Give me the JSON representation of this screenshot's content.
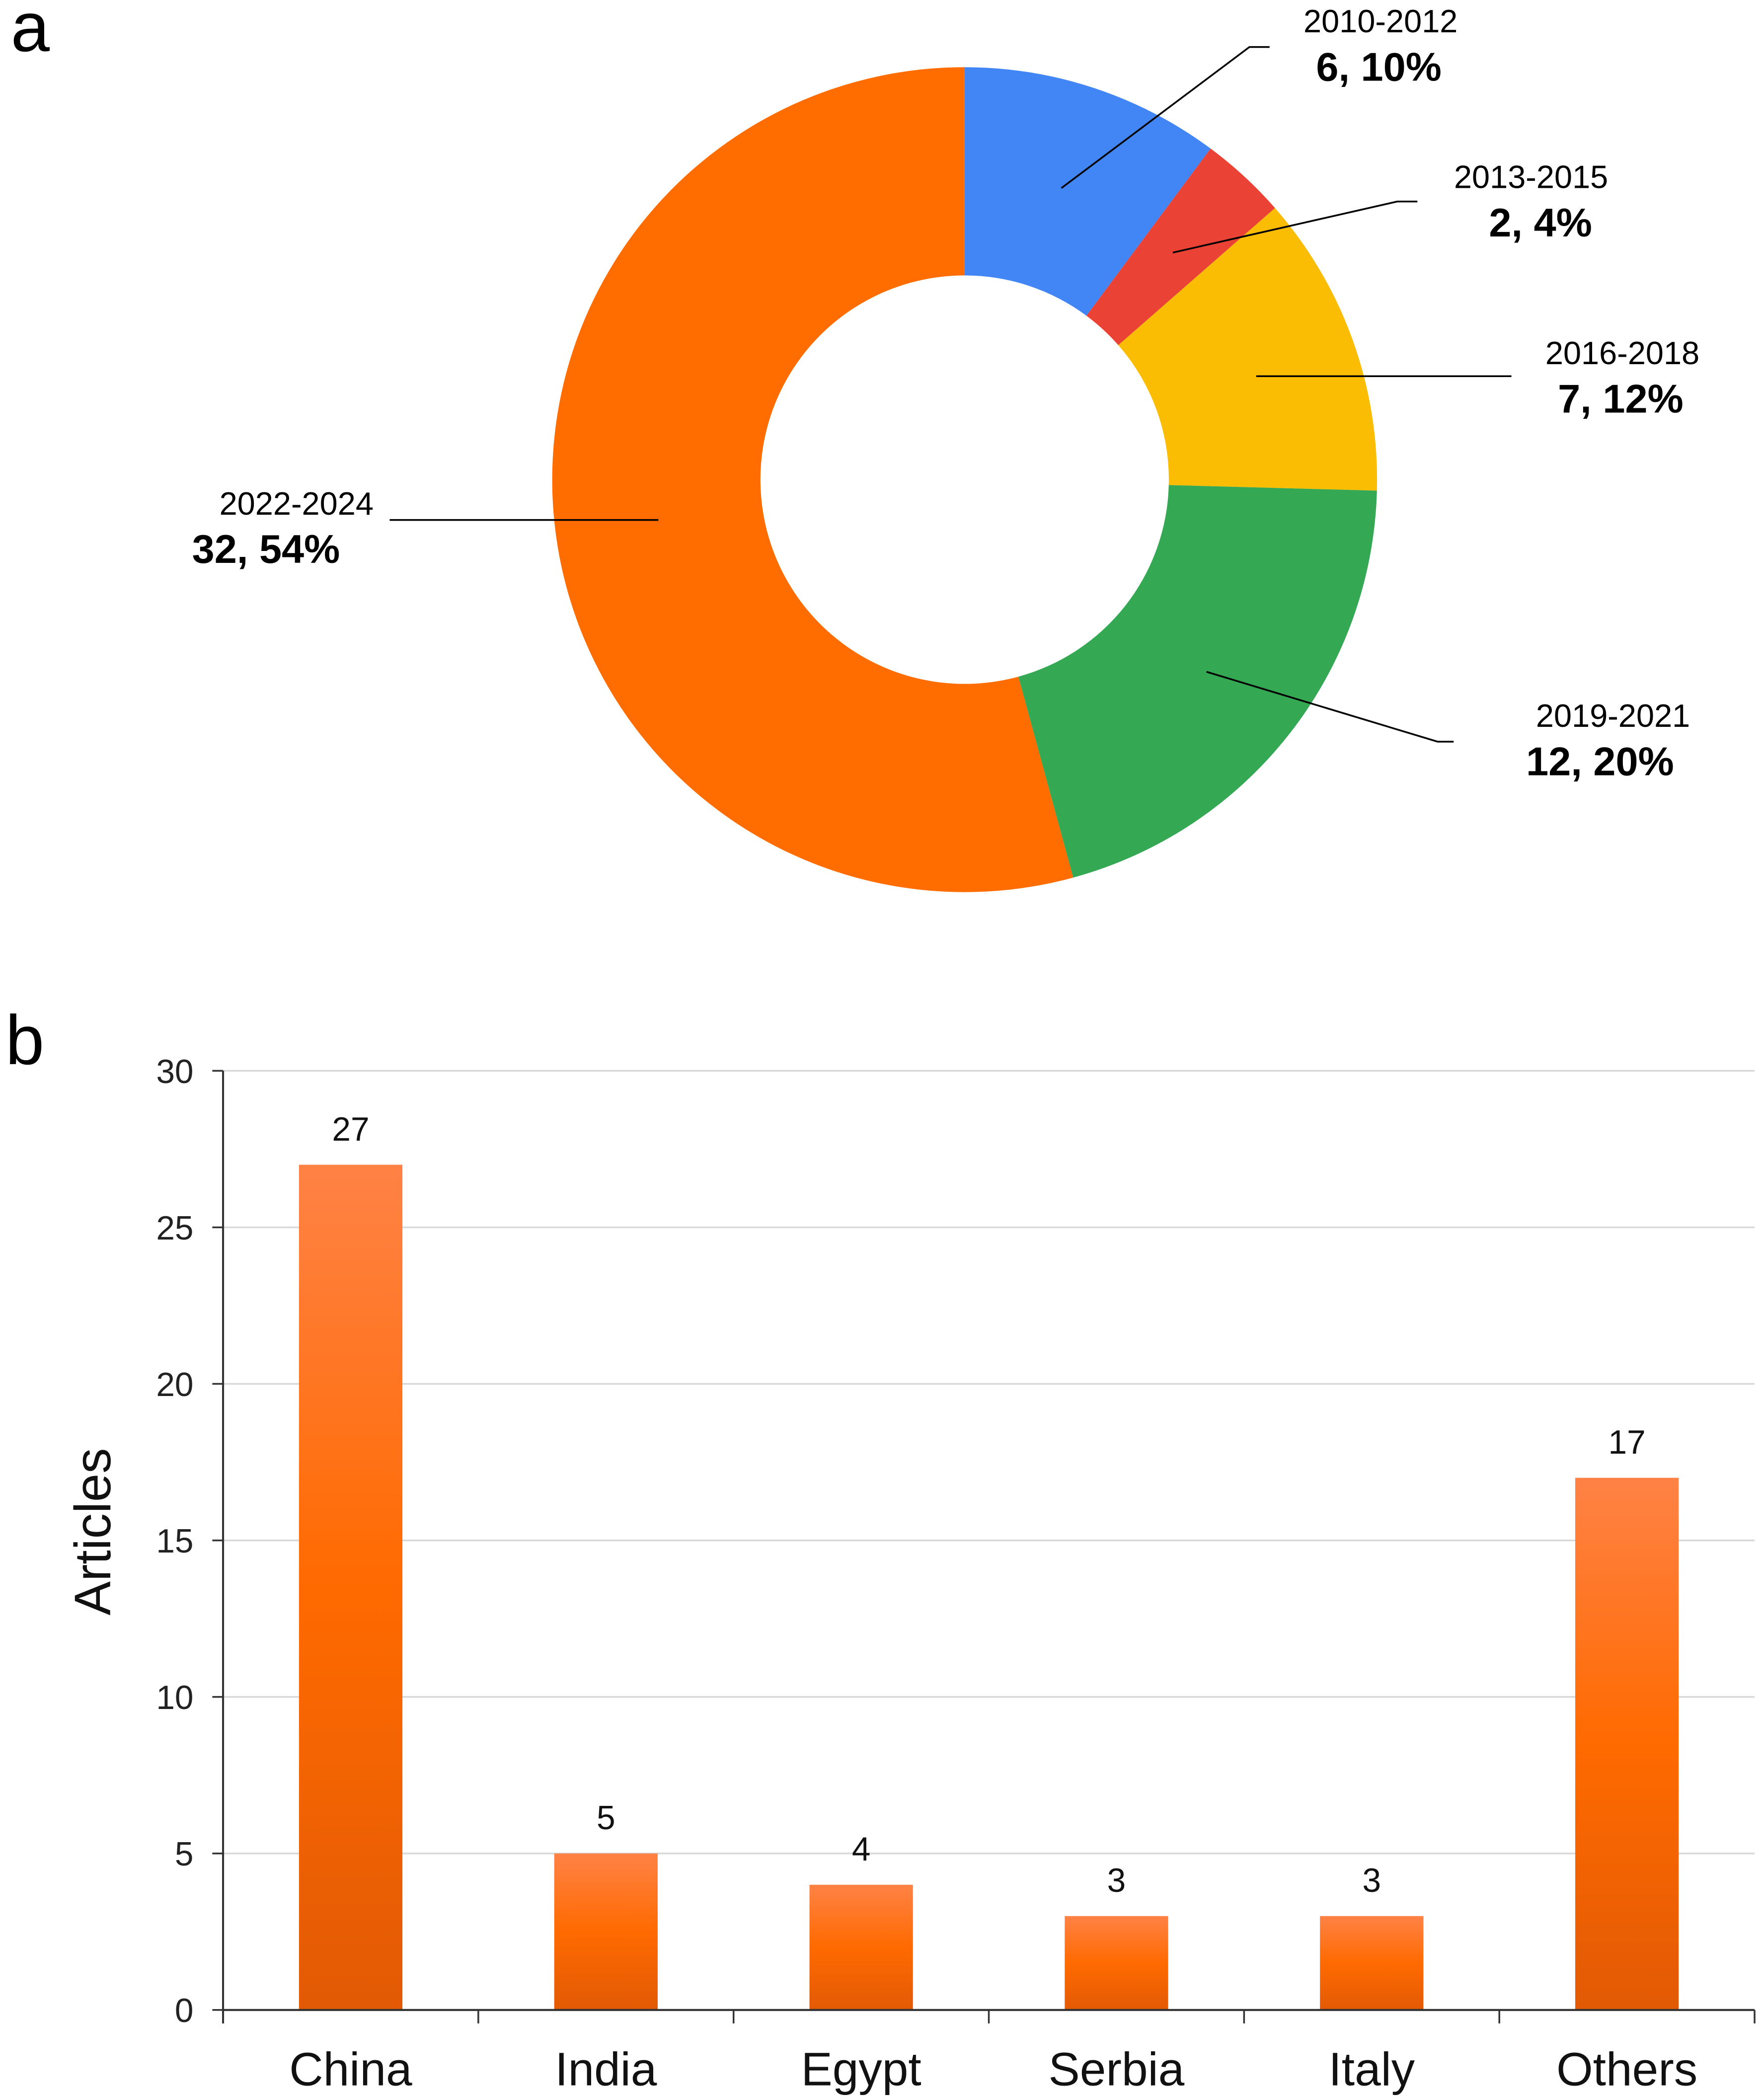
{
  "panel_labels": {
    "a": "a",
    "b": "b"
  },
  "chart_data": [
    {
      "type": "pie",
      "donut": true,
      "start": "top",
      "direction": "clockwise",
      "slices": [
        {
          "label": "2010-2012",
          "value": 6,
          "percent_label": "6, 10%",
          "color": "#4285f4"
        },
        {
          "label": "2013-2015",
          "value": 2,
          "percent_label": "2, 4%",
          "color": "#ea4335"
        },
        {
          "label": "2016-2018",
          "value": 7,
          "percent_label": "7, 12%",
          "color": "#fbbc04"
        },
        {
          "label": "2019-2021",
          "value": 12,
          "percent_label": "12, 20%",
          "color": "#34a853"
        },
        {
          "label": "2022-2024",
          "value": 32,
          "percent_label": "32, 54%",
          "color": "#ff6d01"
        }
      ]
    },
    {
      "type": "bar",
      "categories": [
        "China",
        "India",
        "Egypt",
        "Serbia",
        "Italy",
        "Others"
      ],
      "values": [
        27,
        5,
        4,
        3,
        3,
        17
      ],
      "data_labels": [
        "27",
        "5",
        "4",
        "3",
        "3",
        "17"
      ],
      "xlabel": "",
      "ylabel": "Articles",
      "ylim": [
        0,
        30
      ],
      "yticks": [
        "0",
        "5",
        "10",
        "15",
        "20",
        "25",
        "30"
      ],
      "grid": true,
      "bar_color": "#ff6d01"
    }
  ]
}
